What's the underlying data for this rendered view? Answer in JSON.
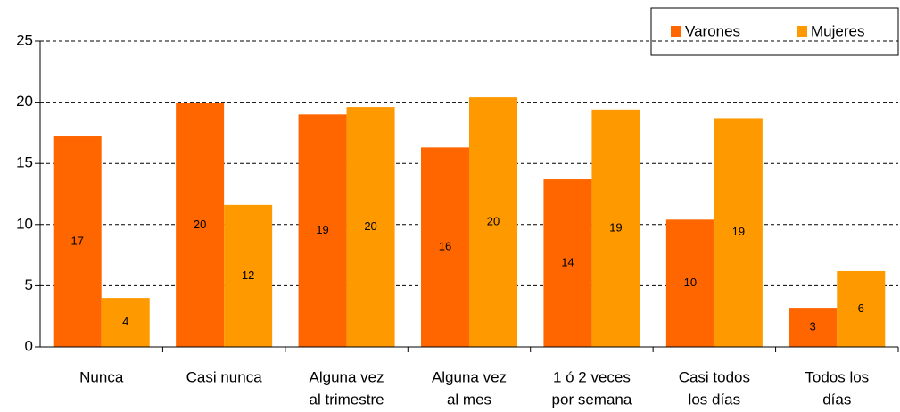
{
  "chart_data": {
    "type": "bar",
    "categories": [
      [
        "Nunca"
      ],
      [
        "Casi nunca"
      ],
      [
        "Alguna vez",
        "al trimestre"
      ],
      [
        "Alguna vez",
        "al mes"
      ],
      [
        "1 ó 2 veces",
        "por semana"
      ],
      [
        "Casi todos",
        "los días"
      ],
      [
        "Todos los",
        "días"
      ]
    ],
    "series": [
      {
        "name": "Varones",
        "color": "#ff6600",
        "values": [
          17.2,
          19.9,
          19.0,
          16.3,
          13.7,
          10.4,
          3.2
        ],
        "value_labels": [
          "17",
          "20",
          "19",
          "16",
          "14",
          "10",
          "3"
        ]
      },
      {
        "name": "Mujeres",
        "color": "#ff9900",
        "values": [
          4.0,
          11.6,
          19.6,
          20.4,
          19.4,
          18.7,
          6.2
        ],
        "value_labels": [
          "4",
          "12",
          "20",
          "20",
          "19",
          "19",
          "6"
        ]
      }
    ],
    "ylim": [
      0,
      25
    ],
    "yticks": [
      0,
      5,
      10,
      15,
      20,
      25
    ],
    "grid": true,
    "legend": "top-right"
  }
}
